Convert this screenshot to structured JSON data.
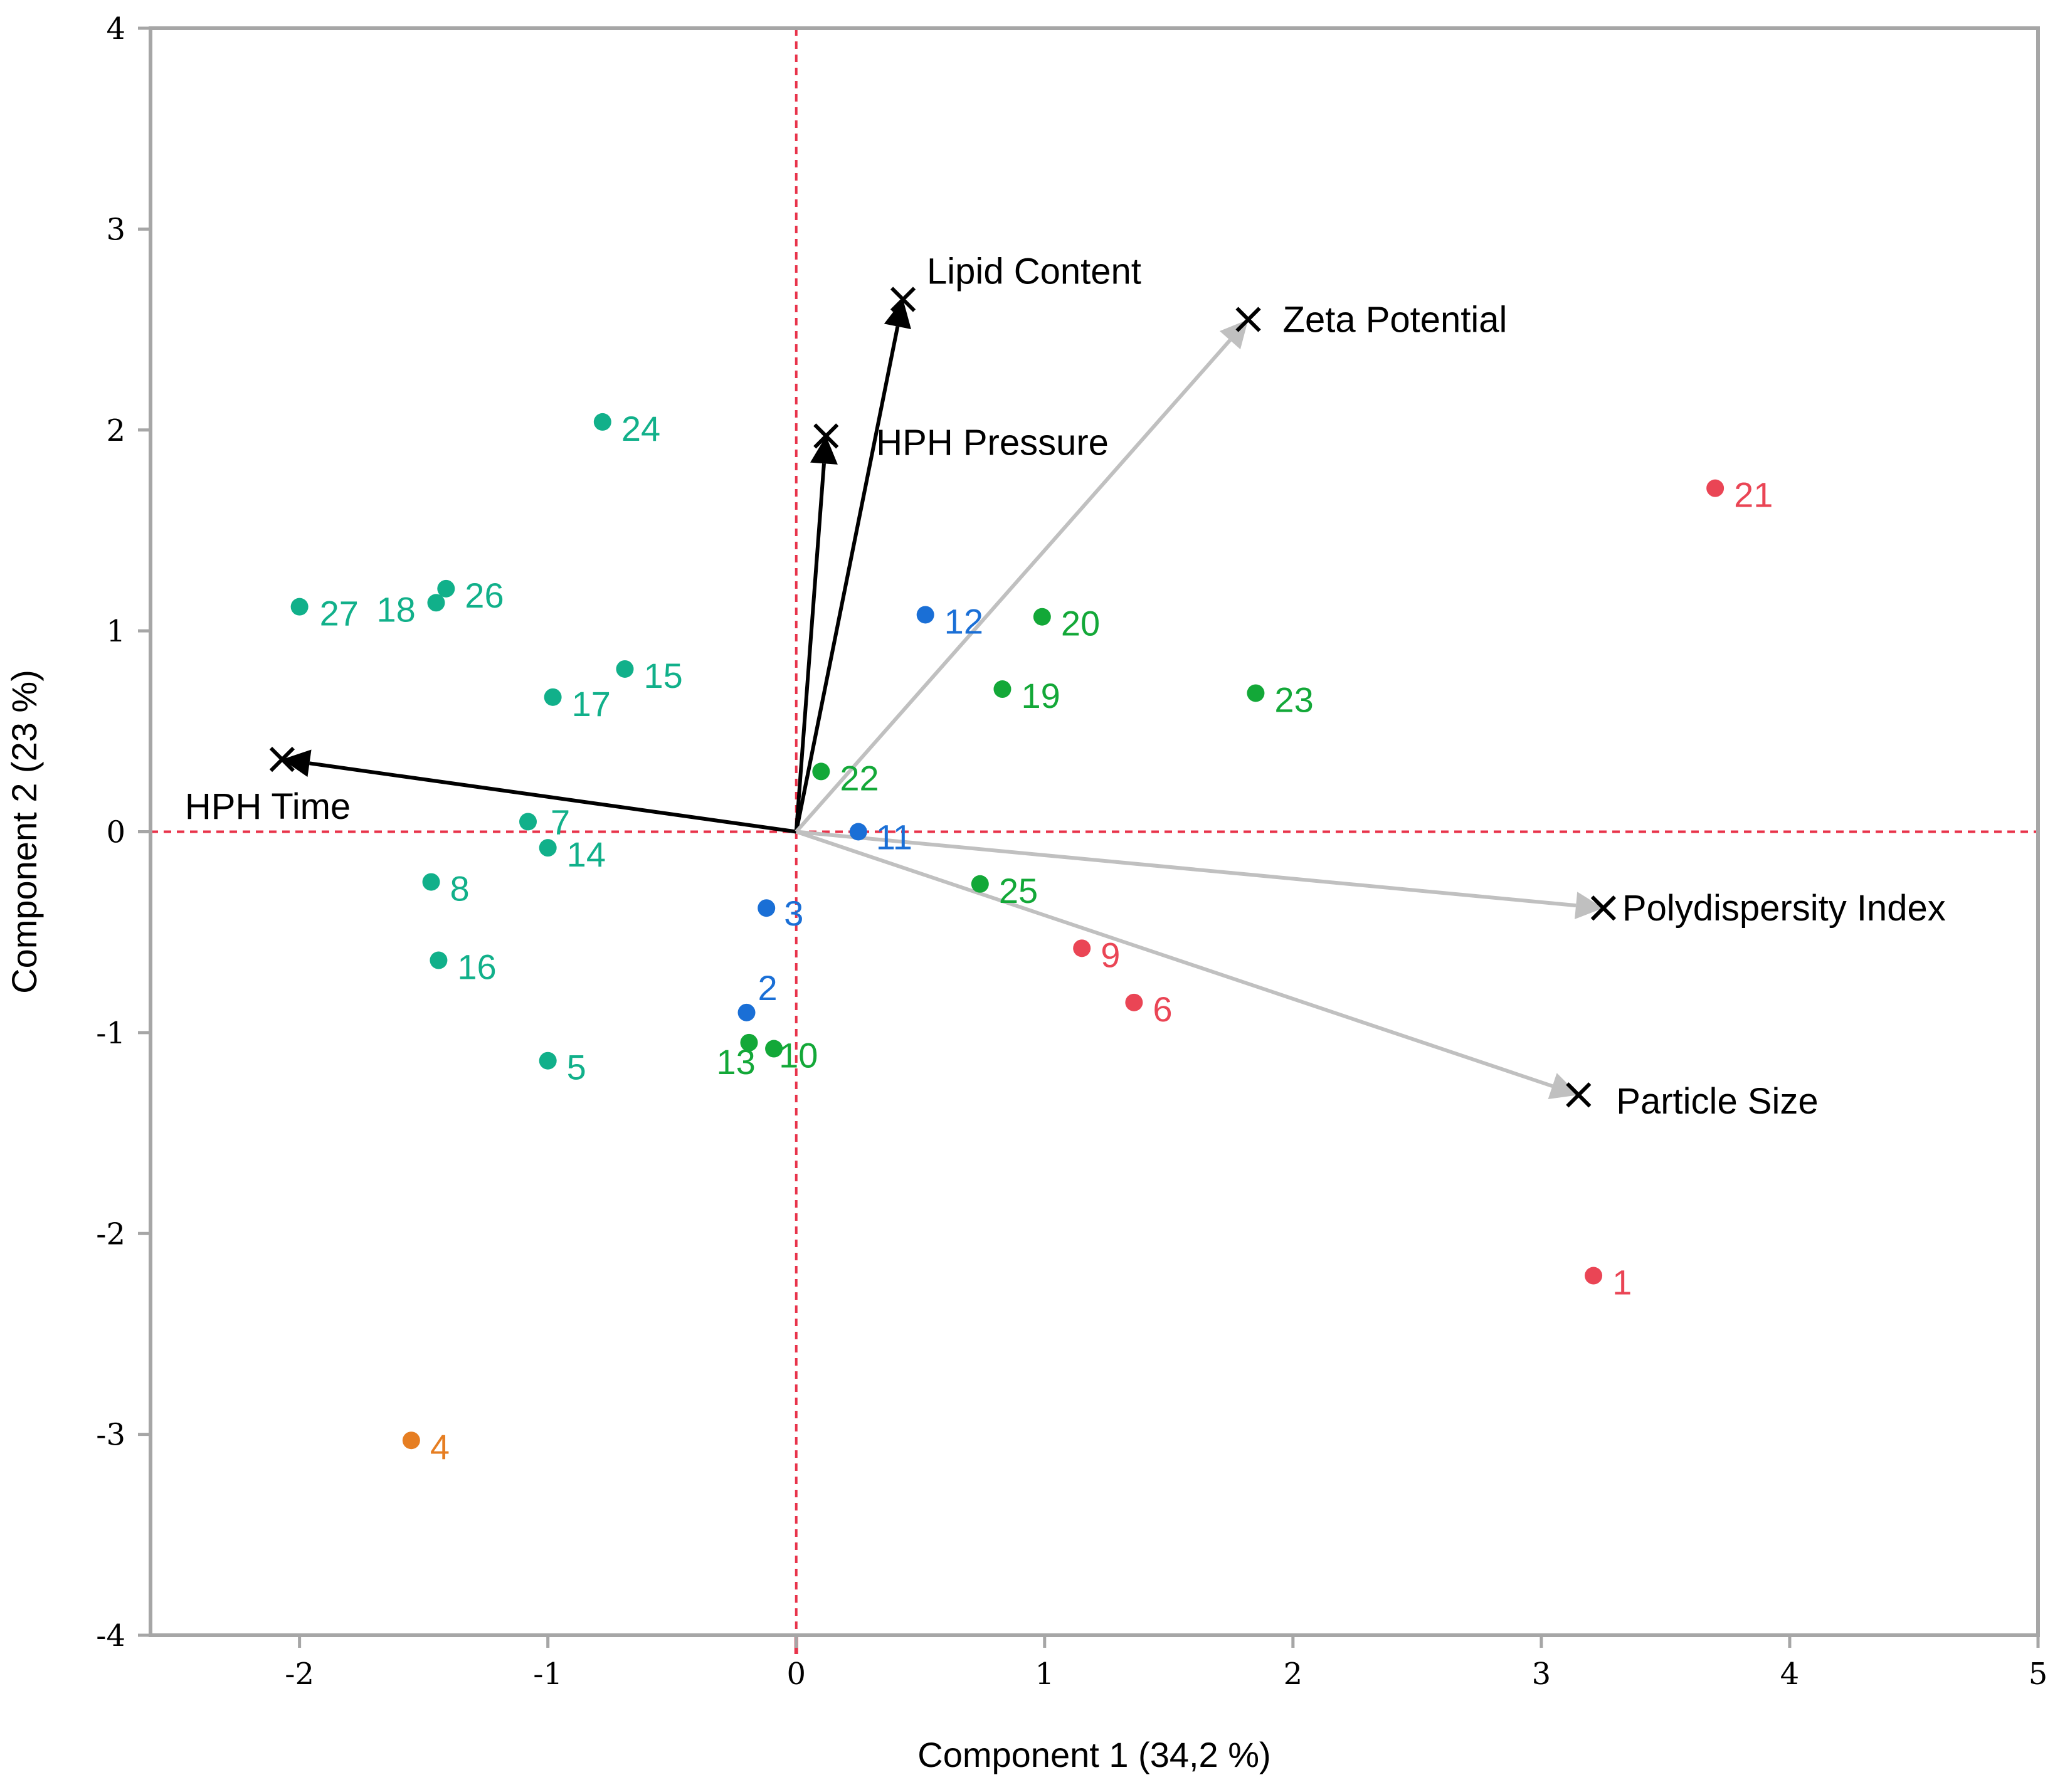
{
  "chart_data": {
    "type": "scatter",
    "subtype": "biplot",
    "xlabel": "Component 1  (34,2 %)",
    "ylabel": "Component 2  (23 %)",
    "xlim": [
      -2.6,
      5
    ],
    "ylim": [
      -4,
      4
    ],
    "xticks": [
      "-2",
      "-1",
      "0",
      "1",
      "2",
      "3",
      "4",
      "5"
    ],
    "yticks": [
      "-4",
      "-3",
      "-2",
      "-1",
      "0",
      "1",
      "2",
      "3",
      "4"
    ],
    "reference_lines": {
      "x": 0,
      "y": 0,
      "color": "#e8334a",
      "style": "dashed"
    },
    "group_colors": {
      "teal": "#11b08a",
      "green": "#13a838",
      "blue": "#1a6fd6",
      "red": "#ea4555",
      "orange": "#e67e22"
    },
    "points": [
      {
        "label": "1",
        "x": 3.21,
        "y": -2.21,
        "group": "red"
      },
      {
        "label": "2",
        "x": -0.2,
        "y": -0.9,
        "group": "blue"
      },
      {
        "label": "3",
        "x": -0.12,
        "y": -0.38,
        "group": "blue"
      },
      {
        "label": "4",
        "x": -1.55,
        "y": -3.03,
        "group": "orange"
      },
      {
        "label": "5",
        "x": -1.0,
        "y": -1.14,
        "group": "teal"
      },
      {
        "label": "6",
        "x": 1.36,
        "y": -0.85,
        "group": "red"
      },
      {
        "label": "7",
        "x": -1.08,
        "y": 0.05,
        "group": "teal"
      },
      {
        "label": "8",
        "x": -1.47,
        "y": -0.25,
        "group": "teal"
      },
      {
        "label": "9",
        "x": 1.15,
        "y": -0.58,
        "group": "red"
      },
      {
        "label": "10",
        "x": -0.09,
        "y": -1.08,
        "group": "green"
      },
      {
        "label": "11",
        "x": 0.25,
        "y": 0.0,
        "group": "blue"
      },
      {
        "label": "12",
        "x": 0.52,
        "y": 1.08,
        "group": "blue"
      },
      {
        "label": "13",
        "x": -0.19,
        "y": -1.05,
        "group": "green"
      },
      {
        "label": "14",
        "x": -1.0,
        "y": -0.08,
        "group": "teal"
      },
      {
        "label": "15",
        "x": -0.69,
        "y": 0.81,
        "group": "teal"
      },
      {
        "label": "16",
        "x": -1.44,
        "y": -0.64,
        "group": "teal"
      },
      {
        "label": "17",
        "x": -0.98,
        "y": 0.67,
        "group": "teal"
      },
      {
        "label": "18",
        "x": -1.45,
        "y": 1.14,
        "group": "teal"
      },
      {
        "label": "19",
        "x": 0.83,
        "y": 0.71,
        "group": "green"
      },
      {
        "label": "20",
        "x": 0.99,
        "y": 1.07,
        "group": "green"
      },
      {
        "label": "21",
        "x": 3.7,
        "y": 1.71,
        "group": "red"
      },
      {
        "label": "22",
        "x": 0.1,
        "y": 0.3,
        "group": "green"
      },
      {
        "label": "23",
        "x": 1.85,
        "y": 0.69,
        "group": "green"
      },
      {
        "label": "24",
        "x": -0.78,
        "y": 2.04,
        "group": "teal"
      },
      {
        "label": "25",
        "x": 0.74,
        "y": -0.26,
        "group": "green"
      },
      {
        "label": "26",
        "x": -1.41,
        "y": 1.21,
        "group": "teal"
      },
      {
        "label": "27",
        "x": -2.0,
        "y": 1.12,
        "group": "teal"
      }
    ],
    "loadings": [
      {
        "name": "Lipid Content",
        "x": 0.43,
        "y": 2.65,
        "color": "#000000"
      },
      {
        "name": "HPH Pressure",
        "x": 0.12,
        "y": 1.97,
        "color": "#000000"
      },
      {
        "name": "HPH Time",
        "x": -2.07,
        "y": 0.36,
        "color": "#000000"
      },
      {
        "name": "Zeta Potential",
        "x": 1.82,
        "y": 2.55,
        "color": "#c0c0c0"
      },
      {
        "name": "Polydispersity Index",
        "x": 3.25,
        "y": -0.38,
        "color": "#c0c0c0"
      },
      {
        "name": "Particle Size",
        "x": 3.15,
        "y": -1.31,
        "color": "#c0c0c0"
      }
    ]
  }
}
